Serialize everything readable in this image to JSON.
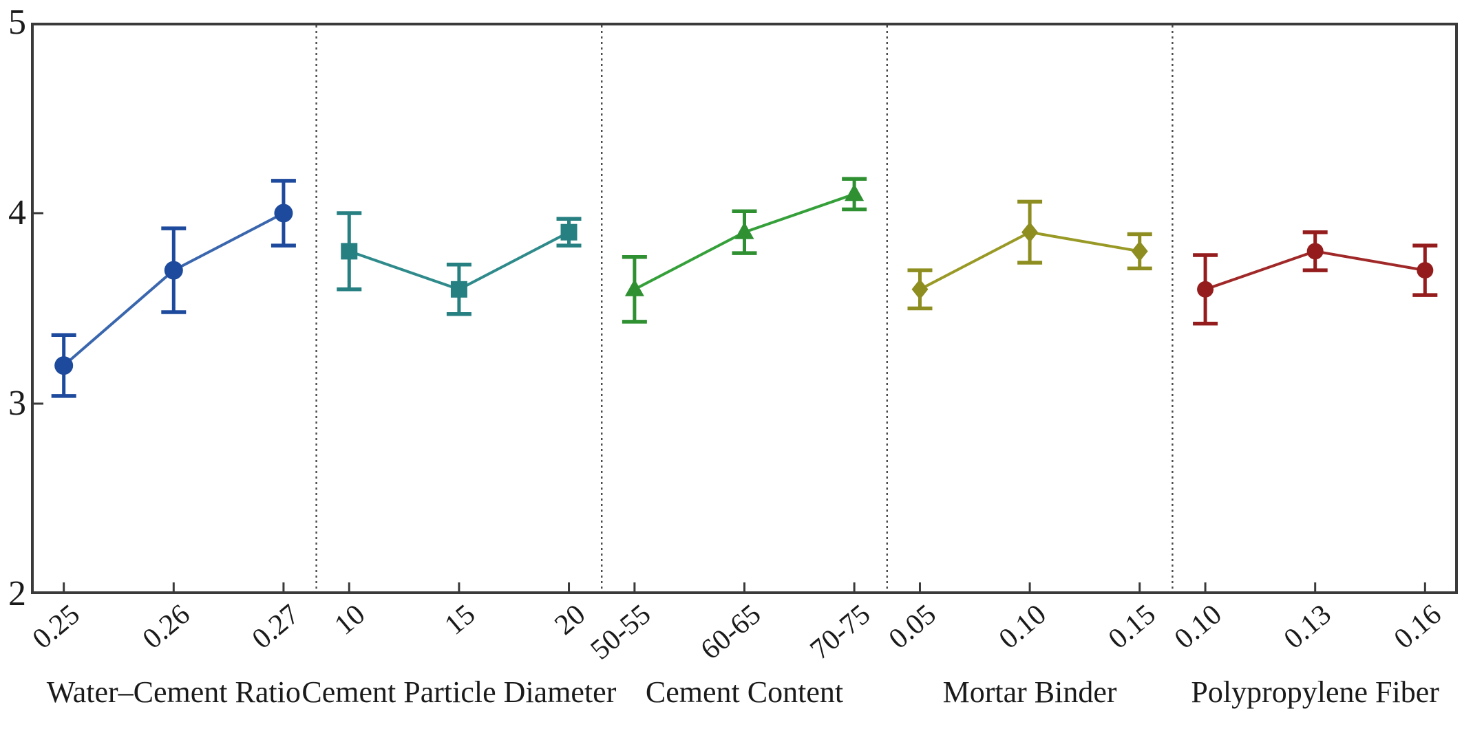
{
  "chart_data": {
    "type": "line",
    "description": "Main effects plot with error bars, five factor panels separated by dotted lines",
    "title": "",
    "xlabel": "",
    "ylabel": "",
    "ylim": [
      2,
      5
    ],
    "yticks": [
      5,
      4,
      3,
      2
    ],
    "grid": false,
    "legend": "none",
    "panel_separator_style": "dotted",
    "axis_color": "#3a3a3a",
    "text_color": "#1a1a1a",
    "panels": [
      {
        "name": "Water–Cement Ratio",
        "marker": "circle",
        "color": "#1d4a9c",
        "line_color": "#3a66ae",
        "categories": [
          "0.25",
          "0.26",
          "0.27"
        ],
        "values": [
          3.2,
          3.7,
          4.0
        ],
        "errors": [
          0.16,
          0.22,
          0.17
        ]
      },
      {
        "name": "Cement Particle Diameter",
        "marker": "square",
        "color": "#267f80",
        "line_color": "#2f8a8b",
        "categories": [
          "10",
          "15",
          "20"
        ],
        "values": [
          3.8,
          3.6,
          3.9
        ],
        "errors": [
          0.2,
          0.13,
          0.07
        ]
      },
      {
        "name": "Cement Content",
        "marker": "triangle",
        "color": "#2f9032",
        "line_color": "#35a03a",
        "categories": [
          "50-55",
          "60-65",
          "70-75"
        ],
        "values": [
          3.6,
          3.9,
          4.1
        ],
        "errors": [
          0.17,
          0.11,
          0.08
        ]
      },
      {
        "name": "Mortar Binder",
        "marker": "diamond",
        "color": "#8d8d20",
        "line_color": "#999926",
        "categories": [
          "0.05",
          "0.10",
          "0.15"
        ],
        "values": [
          3.6,
          3.9,
          3.8
        ],
        "errors": [
          0.1,
          0.16,
          0.09
        ]
      },
      {
        "name": "Polypropylene Fiber",
        "marker": "circle-small",
        "color": "#951c1c",
        "line_color": "#a02828",
        "categories": [
          "0.10",
          "0.13",
          "0.16"
        ],
        "values": [
          3.6,
          3.8,
          3.7
        ],
        "errors": [
          0.18,
          0.1,
          0.13
        ]
      }
    ]
  }
}
